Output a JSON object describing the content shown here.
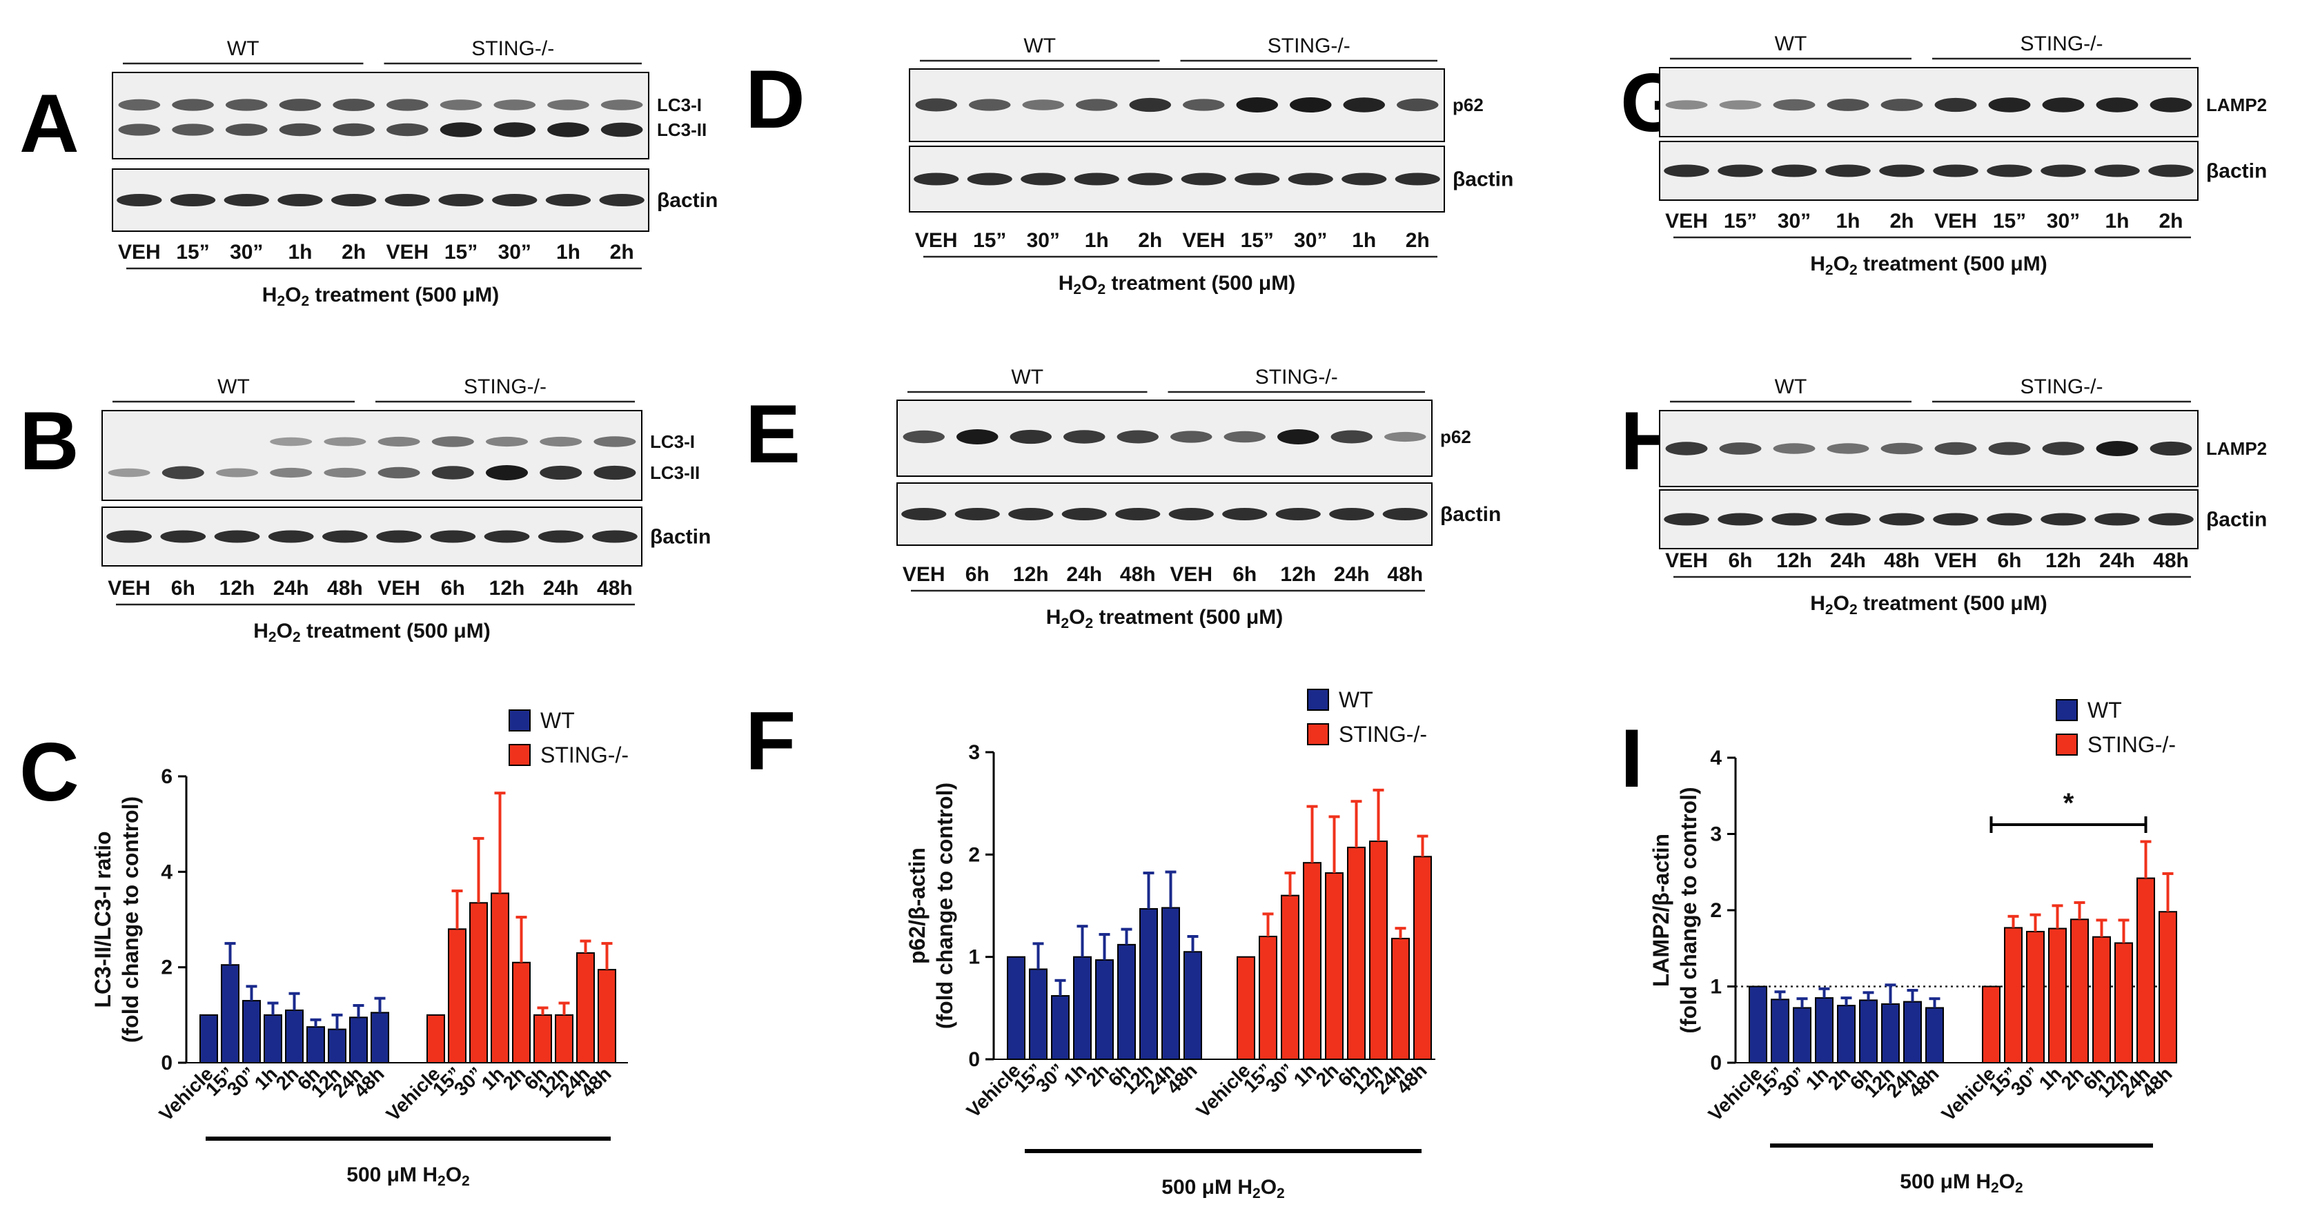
{
  "colors": {
    "wt": "#1a2a8c",
    "sting": "#f0321c",
    "blot_bg": "#efefef",
    "band": "#1a1a1a"
  },
  "blots": {
    "A": {
      "letter": "A",
      "groups": [
        "WT",
        "STING-/-"
      ],
      "proteins": [
        "LC3-I",
        "LC3-II"
      ],
      "control": "βactin",
      "lanes": [
        "VEH",
        "15”",
        "30”",
        "1h",
        "2h",
        "VEH",
        "15”",
        "30”",
        "1h",
        "2h"
      ],
      "treatment": [
        "H",
        "2",
        "O",
        "2",
        " treatment (500 ",
        "μ",
        "M)"
      ]
    },
    "B": {
      "letter": "B",
      "groups": [
        "WT",
        "STING-/-"
      ],
      "proteins": [
        "LC3-I",
        "LC3-II"
      ],
      "control": "βactin",
      "lanes": [
        "VEH",
        "6h",
        "12h",
        "24h",
        "48h",
        "VEH",
        "6h",
        "12h",
        "24h",
        "48h"
      ],
      "treatment": [
        "H",
        "2",
        "O",
        "2",
        " treatment (500 ",
        "μ",
        "M)"
      ]
    },
    "D": {
      "letter": "D",
      "groups": [
        "WT",
        "STING-/-"
      ],
      "proteins": [
        "p62"
      ],
      "control": "βactin",
      "lanes": [
        "VEH",
        "15”",
        "30”",
        "1h",
        "2h",
        "VEH",
        "15”",
        "30”",
        "1h",
        "2h"
      ],
      "treatment": [
        "H",
        "2",
        "O",
        "2",
        " treatment (500 ",
        "μ",
        "M)"
      ]
    },
    "E": {
      "letter": "E",
      "groups": [
        "WT",
        "STING-/-"
      ],
      "proteins": [
        "p62"
      ],
      "control": "βactin",
      "lanes": [
        "VEH",
        "6h",
        "12h",
        "24h",
        "48h",
        "VEH",
        "6h",
        "12h",
        "24h",
        "48h"
      ],
      "treatment": [
        "H",
        "2",
        "O",
        "2",
        " treatment (500 ",
        "μ",
        "M)"
      ]
    },
    "G": {
      "letter": "G",
      "groups": [
        "WT",
        "STING-/-"
      ],
      "proteins": [
        "LAMP2"
      ],
      "control": "βactin",
      "lanes": [
        "VEH",
        "15”",
        "30”",
        "1h",
        "2h",
        "VEH",
        "15”",
        "30”",
        "1h",
        "2h"
      ],
      "treatment": [
        "H",
        "2",
        "O",
        "2",
        " treatment (500 ",
        "μ",
        "M)"
      ]
    },
    "H": {
      "letter": "H",
      "groups": [
        "WT",
        "STING-/-"
      ],
      "proteins": [
        "LAMP2"
      ],
      "control": "βactin",
      "lanes": [
        "VEH",
        "6h",
        "12h",
        "24h",
        "48h",
        "VEH",
        "6h",
        "12h",
        "24h",
        "48h"
      ],
      "treatment": [
        "H",
        "2",
        "O",
        "2",
        " treatment (500 ",
        "μ",
        "M)"
      ]
    }
  },
  "chart_data": [
    {
      "letter": "C",
      "type": "bar",
      "ylabel_lines": [
        "LC3-II/LC3-I ratio",
        "(fold change to control)"
      ],
      "ylim": [
        0,
        6
      ],
      "yticks": [
        "0",
        "2",
        "4",
        "6"
      ],
      "categories": [
        "Vehicle",
        "15”",
        "30”",
        "1h",
        "2h",
        "6h",
        "12h",
        "24h",
        "48h"
      ],
      "series": [
        {
          "name": "WT",
          "values": [
            1.0,
            2.05,
            1.3,
            1.0,
            1.1,
            0.75,
            0.7,
            0.95,
            1.05
          ],
          "errors": [
            0.0,
            0.45,
            0.3,
            0.25,
            0.35,
            0.15,
            0.3,
            0.25,
            0.3
          ]
        },
        {
          "name": "STING-/-",
          "values": [
            1.0,
            2.8,
            3.35,
            3.55,
            2.1,
            1.0,
            1.0,
            2.3,
            1.95
          ],
          "errors": [
            0.0,
            0.8,
            1.35,
            2.1,
            0.95,
            0.15,
            0.25,
            0.25,
            0.55
          ]
        }
      ],
      "legend": [
        "WT",
        "STING-/-"
      ],
      "xlabel": [
        "500 ",
        "μ",
        "M H",
        "2",
        "O",
        "2"
      ]
    },
    {
      "letter": "F",
      "type": "bar",
      "ylabel_lines": [
        "p62/β-actin",
        "(fold change to control)"
      ],
      "ylim": [
        0,
        3
      ],
      "yticks": [
        "0",
        "1",
        "2",
        "3"
      ],
      "categories": [
        "Vehicle",
        "15”",
        "30”",
        "1h",
        "2h",
        "6h",
        "12h",
        "24h",
        "48h"
      ],
      "series": [
        {
          "name": "WT",
          "values": [
            1.0,
            0.88,
            0.62,
            1.0,
            0.97,
            1.12,
            1.47,
            1.48,
            1.05
          ],
          "errors": [
            0.0,
            0.25,
            0.15,
            0.3,
            0.25,
            0.15,
            0.35,
            0.35,
            0.15
          ]
        },
        {
          "name": "STING-/-",
          "values": [
            1.0,
            1.2,
            1.6,
            1.92,
            1.82,
            2.07,
            2.13,
            1.18,
            1.98
          ],
          "errors": [
            0.0,
            0.22,
            0.22,
            0.55,
            0.55,
            0.45,
            0.5,
            0.1,
            0.2
          ]
        }
      ],
      "legend": [
        "WT",
        "STING-/-"
      ],
      "xlabel": [
        "500 ",
        "μ",
        "M H",
        "2",
        "O",
        "2"
      ]
    },
    {
      "letter": "I",
      "type": "bar",
      "ylabel_lines": [
        "LAMP2/β-actin",
        "(fold change to control)"
      ],
      "ylim": [
        0,
        4
      ],
      "yticks": [
        "0",
        "1",
        "2",
        "3",
        "4"
      ],
      "categories": [
        "Vehicle",
        "15”",
        "30”",
        "1h",
        "2h",
        "6h",
        "12h",
        "24h",
        "48h"
      ],
      "series": [
        {
          "name": "WT",
          "values": [
            1.0,
            0.83,
            0.72,
            0.85,
            0.75,
            0.82,
            0.77,
            0.8,
            0.72
          ],
          "errors": [
            0.0,
            0.1,
            0.12,
            0.12,
            0.1,
            0.1,
            0.25,
            0.15,
            0.12
          ]
        },
        {
          "name": "STING-/-",
          "values": [
            1.0,
            1.77,
            1.72,
            1.76,
            1.88,
            1.65,
            1.57,
            2.42,
            1.98
          ],
          "errors": [
            0.0,
            0.15,
            0.22,
            0.3,
            0.22,
            0.22,
            0.3,
            0.48,
            0.5
          ]
        }
      ],
      "reference_line": 1.0,
      "significance": {
        "from_category": "Vehicle",
        "to_category": "24h",
        "series": "STING-/-",
        "label": "*"
      },
      "legend": [
        "WT",
        "STING-/-"
      ],
      "xlabel": [
        "500 ",
        "μ",
        "M H",
        "2",
        "O",
        "2"
      ]
    }
  ]
}
